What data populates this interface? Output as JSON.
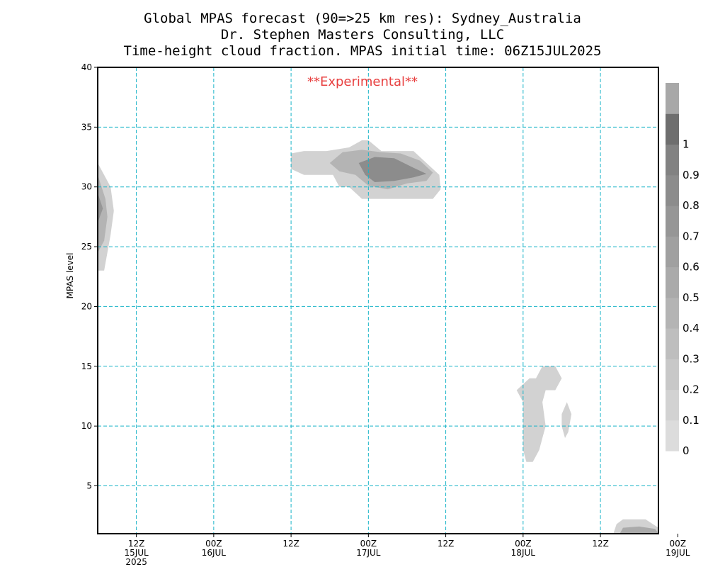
{
  "chart_data": {
    "type": "contour",
    "title_lines": [
      "Global MPAS forecast (90=>25 km res): Sydney_Australia",
      "Dr. Stephen Masters Consulting, LLC",
      "Time-height cloud fraction.   MPAS initial time: 06Z15JUL2025"
    ],
    "annotation": "**Experimental**",
    "annotation_color": "#e84040",
    "xlabel": "",
    "ylabel": "MPAS level",
    "xlim_hours": [
      6,
      93
    ],
    "ylim": [
      1,
      40
    ],
    "x_ticks": [
      {
        "hour": 12,
        "lines": [
          "12Z",
          "15JUL",
          "2025"
        ]
      },
      {
        "hour": 24,
        "lines": [
          "00Z",
          "16JUL"
        ]
      },
      {
        "hour": 36,
        "lines": [
          "12Z"
        ]
      },
      {
        "hour": 48,
        "lines": [
          "00Z",
          "17JUL"
        ]
      },
      {
        "hour": 60,
        "lines": [
          "12Z"
        ]
      },
      {
        "hour": 72,
        "lines": [
          "00Z",
          "18JUL"
        ]
      },
      {
        "hour": 84,
        "lines": [
          "12Z"
        ]
      },
      {
        "hour": 96,
        "lines": [
          "00Z",
          "19JUL"
        ]
      }
    ],
    "y_ticks": [
      5,
      10,
      15,
      20,
      25,
      30,
      35,
      40
    ],
    "grid": true,
    "colorbar": {
      "levels": [
        0,
        0.1,
        0.2,
        0.3,
        0.4,
        0.5,
        0.6,
        0.7,
        0.8,
        0.9,
        1
      ],
      "labels": [
        "0",
        "0.1",
        "0.2",
        "0.3",
        "0.4",
        "0.5",
        "0.6",
        "0.7",
        "0.8",
        "0.9",
        "1"
      ],
      "colors": [
        "#dcdcdc",
        "#d2d2d2",
        "#c8c8c8",
        "#bebebe",
        "#b4b4b4",
        "#aaaaaa",
        "#a0a0a0",
        "#969696",
        "#8c8c8c",
        "#828282",
        "#6e6e6e",
        "#a8a8a8"
      ]
    },
    "regions": [
      {
        "name": "early-upper-cloud",
        "level": 0.1,
        "points": [
          [
            6,
            32
          ],
          [
            8,
            30
          ],
          [
            8.5,
            28
          ],
          [
            8,
            26
          ],
          [
            7,
            23
          ],
          [
            6,
            23
          ]
        ]
      },
      {
        "name": "early-upper-cloud-core",
        "level": 0.4,
        "points": [
          [
            6,
            31
          ],
          [
            7.2,
            29
          ],
          [
            7.5,
            27.5
          ],
          [
            7,
            25.5
          ],
          [
            6,
            24.5
          ]
        ]
      },
      {
        "name": "early-upper-cloud-center",
        "level": 0.7,
        "points": [
          [
            6,
            29.5
          ],
          [
            6.8,
            28.2
          ],
          [
            6,
            27
          ]
        ]
      },
      {
        "name": "mid-forecast-upper-cloud",
        "level": 0.1,
        "points": [
          [
            36,
            32.8
          ],
          [
            38,
            33
          ],
          [
            41.5,
            33
          ],
          [
            45,
            33.3
          ],
          [
            47,
            33.9
          ],
          [
            48,
            33.9
          ],
          [
            50,
            33
          ],
          [
            55,
            33
          ],
          [
            57,
            32
          ],
          [
            59,
            31
          ],
          [
            59.2,
            29.8
          ],
          [
            58,
            29
          ],
          [
            56,
            29
          ],
          [
            54,
            29
          ],
          [
            50,
            29
          ],
          [
            47,
            29
          ],
          [
            45,
            30
          ],
          [
            43.5,
            30
          ],
          [
            42.5,
            31
          ],
          [
            40,
            31
          ],
          [
            38,
            31
          ],
          [
            36,
            31.5
          ]
        ]
      },
      {
        "name": "mid-forecast-upper-cloud-core",
        "level": 0.4,
        "points": [
          [
            42,
            32
          ],
          [
            44,
            32.9
          ],
          [
            47,
            33.1
          ],
          [
            50,
            32.9
          ],
          [
            53,
            32.8
          ],
          [
            56,
            32.2
          ],
          [
            58,
            31.2
          ],
          [
            57,
            30.5
          ],
          [
            54,
            30.3
          ],
          [
            51,
            29.8
          ],
          [
            48,
            30.1
          ],
          [
            46,
            31
          ],
          [
            43.5,
            31.3
          ]
        ]
      },
      {
        "name": "mid-forecast-upper-cloud-center",
        "level": 0.8,
        "points": [
          [
            46.5,
            32
          ],
          [
            49,
            32.5
          ],
          [
            52,
            32.4
          ],
          [
            55,
            31.6
          ],
          [
            57,
            31.1
          ],
          [
            55,
            30.8
          ],
          [
            52,
            30.5
          ],
          [
            49,
            30.4
          ],
          [
            47.5,
            31
          ]
        ]
      },
      {
        "name": "day3-mid-cloud",
        "level": 0.1,
        "points": [
          [
            71,
            13
          ],
          [
            73,
            14
          ],
          [
            74,
            14
          ],
          [
            75,
            15
          ],
          [
            77,
            15
          ],
          [
            78,
            14
          ],
          [
            77,
            13
          ],
          [
            75.5,
            13
          ],
          [
            75,
            12
          ],
          [
            75.5,
            10
          ],
          [
            75,
            9
          ],
          [
            74.5,
            8
          ],
          [
            73.5,
            7
          ],
          [
            72.5,
            7
          ],
          [
            72,
            8
          ],
          [
            72,
            9
          ],
          [
            72,
            12
          ]
        ]
      },
      {
        "name": "day3-mid-cloud-small",
        "level": 0.1,
        "points": [
          [
            78,
            11
          ],
          [
            78.8,
            12
          ],
          [
            79.5,
            11
          ],
          [
            79,
            9.5
          ],
          [
            78.5,
            9
          ],
          [
            78,
            10
          ]
        ]
      },
      {
        "name": "late-low-cloud",
        "level": 0.1,
        "points": [
          [
            86,
            1
          ],
          [
            86.5,
            1.8
          ],
          [
            87.5,
            2.2
          ],
          [
            91,
            2.2
          ],
          [
            93,
            1.5
          ],
          [
            93,
            1
          ]
        ]
      },
      {
        "name": "late-low-cloud-core",
        "level": 0.5,
        "points": [
          [
            87,
            1
          ],
          [
            87.5,
            1.5
          ],
          [
            90,
            1.6
          ],
          [
            92.5,
            1.4
          ],
          [
            93,
            1
          ]
        ]
      }
    ]
  }
}
